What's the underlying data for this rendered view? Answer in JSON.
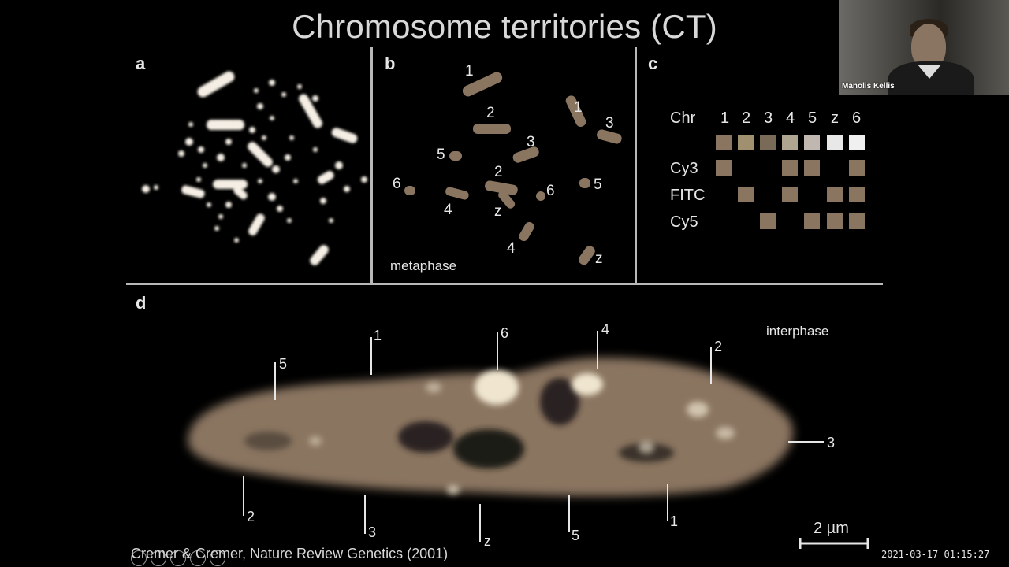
{
  "slide": {
    "title": "Chromosome territories (CT)",
    "panels": {
      "a": "a",
      "b": "b",
      "c": "c",
      "d": "d"
    },
    "panel_b": {
      "caption": "metaphase",
      "labels": [
        "1",
        "1",
        "2",
        "3",
        "3",
        "2",
        "5",
        "6",
        "4",
        "z",
        "6",
        "5",
        "4",
        "z"
      ]
    },
    "panel_c": {
      "header_label": "Chr",
      "columns": [
        "1",
        "2",
        "3",
        "4",
        "5",
        "z",
        "6"
      ],
      "rows": [
        "Cy3",
        "FITC",
        "Cy5"
      ],
      "color_row_colors": [
        "#8a7560",
        "#a09070",
        "#7a6a58",
        "#b0a590",
        "#c0b8b0",
        "#e8e8e8",
        "#f0f0f0"
      ],
      "cell_color": "#8a7560",
      "matrix": {
        "Cy3": [
          1,
          0,
          0,
          1,
          1,
          0,
          1
        ],
        "FITC": [
          0,
          1,
          0,
          1,
          0,
          1,
          1
        ],
        "Cy5": [
          0,
          0,
          1,
          0,
          1,
          1,
          1
        ]
      }
    },
    "panel_d": {
      "caption": "interphase",
      "labels_top": [
        "5",
        "1",
        "6",
        "4",
        "2"
      ],
      "label_right": "3",
      "labels_bottom": [
        "2",
        "3",
        "z",
        "5",
        "1"
      ],
      "scale_bar": "2 µm",
      "nucleus_color": "#8a7560"
    },
    "citation": "Cremer & Cremer, Nature Review Genetics (2001)"
  },
  "webcam": {
    "participant_name": "Manolis Kellis"
  },
  "timestamp": "2021-03-17  01:15:27"
}
